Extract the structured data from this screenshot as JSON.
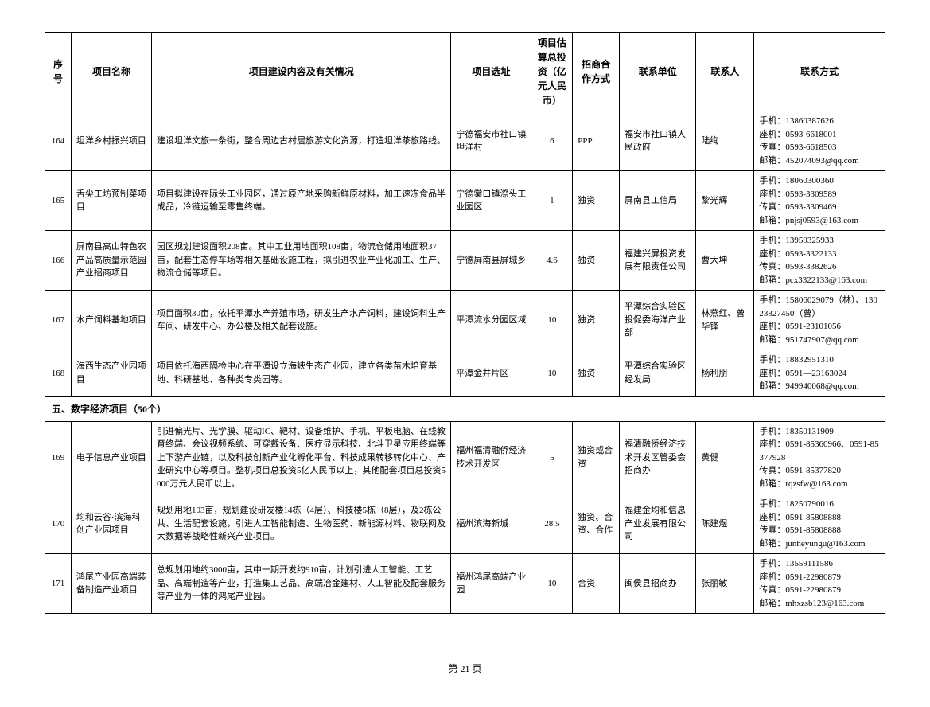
{
  "columns": [
    "序号",
    "项目名称",
    "项目建设内容及有关情况",
    "项目选址",
    "项目估算总投资（亿元人民币）",
    "招商合作方式",
    "联系单位",
    "联系人",
    "联系方式"
  ],
  "rows": [
    {
      "seq": "164",
      "name": "坦洋乡村振兴项目",
      "desc": "建设坦洋文旅一条街，整合周边古村居旅游文化资源，打造坦洋茶旅路线。",
      "loc": "宁德福安市社口镇坦洋村",
      "inv": "6",
      "mode": "PPP",
      "unit": "福安市社口镇人民政府",
      "person": "陆绚",
      "contact": "手机：13860387626\n座机：0593-6618001\n传真：0593-6618503\n邮箱：452074093@qq.com"
    },
    {
      "seq": "165",
      "name": "舌尖工坊预制菜项目",
      "desc": "项目拟建设在际头工业园区，通过原产地采购新鲜原材料，加工速冻食品半成品，冷链运输至零售终端。",
      "loc": "宁德棠口镇漈头工业园区",
      "inv": "1",
      "mode": "独资",
      "unit": "屏南县工信局",
      "person": "黎光辉",
      "contact": "手机：18060300360\n座机：0593-3309589\n传真：0593-3309469\n邮箱：pnjsj0593@163.com"
    },
    {
      "seq": "166",
      "name": "屏南县高山特色农产品高质量示范园产业招商项目",
      "desc": "园区规划建设面积208亩。其中工业用地面积108亩，物流仓储用地面积37亩，配套生态停车场等相关基础设施工程，拟引进农业产业化加工、生产、物流仓储等项目。",
      "loc": "宁德屏南县屏城乡",
      "inv": "4.6",
      "mode": "独资",
      "unit": "福建兴屏投资发展有限责任公司",
      "person": "曹大坤",
      "contact": "手机：13959325933\n座机：0593-3322133\n传真：0593-3382626\n邮箱：pcx3322133@163.com"
    },
    {
      "seq": "167",
      "name": "水产饲料基地项目",
      "desc": "项目面积30亩，依托平潭水产养殖市场，研发生产水产饲料，建设饲料生产车间、研发中心、办公楼及相关配套设施。",
      "loc": "平潭流水分园区域",
      "inv": "10",
      "mode": "独资",
      "unit": "平潭综合实验区投促委海洋产业部",
      "person": "林燕红、曾华锋",
      "contact": "手机：15806029079（林）、13023827450（曾）\n座机：0591-23101056\n邮箱：951747907@qq.com"
    },
    {
      "seq": "168",
      "name": "海西生态产业园项目",
      "desc": "项目依托海西隔检中心在平潭设立海峡生态产业园，建立各类苗木培育基地、科研基地、各种类专类园等。",
      "loc": "平潭金井片区",
      "inv": "10",
      "mode": "独资",
      "unit": "平潭综合实验区经发局",
      "person": "杨利朋",
      "contact": "手机：18832951310\n座机：0591—23163024\n邮箱：949940068@qq.com"
    }
  ],
  "section": "五、数字经济项目（50个）",
  "rows2": [
    {
      "seq": "169",
      "name": "电子信息产业项目",
      "desc": "引进偏光片、光学膜、驱动IC、靶材、设备维护、手机、平板电脑、在线教育终端、会议视频系统、可穿戴设备、医疗显示科技、北斗卫星应用终端等上下游产业链，以及科技创新产业化孵化平台、科技成果转移转化中心、产业研究中心等项目。整机项目总投资5亿人民币以上，其他配套项目总投资5000万元人民币以上。",
      "loc": "福州福清融侨经济技术开发区",
      "inv": "5",
      "mode": "独资或合资",
      "unit": "福清融侨经济技术开发区管委会招商办",
      "person": "黄健",
      "contact": "手机：18350131909\n座机：0591-85360966、0591-85377928\n传真：0591-85377820\n邮箱：rqzsfw@163.com"
    },
    {
      "seq": "170",
      "name": "均和云谷·滨海科创产业园项目",
      "desc": "规划用地103亩，规划建设研发楼14栋（4层）、科技楼5栋（8层），及2栋公共、生活配套设施，引进人工智能制造、生物医药、新能源材料、物联网及大数据等战略性新兴产业项目。",
      "loc": "福州滨海新城",
      "inv": "28.5",
      "mode": "独资、合资、合作",
      "unit": "福建金均和信息产业发展有限公司",
      "person": "陈建煜",
      "contact": "手机：18250790016\n座机：0591-85808888\n传真：0591-85808888\n邮箱：junheyungu@163.com"
    },
    {
      "seq": "171",
      "name": "鸿尾产业园高端装备制造产业项目",
      "desc": "总规划用地约3000亩，其中一期开发约910亩，计划引进人工智能、工艺品、高端制造等产业，打造集工艺品、高端冶金建材、人工智能及配套服务等产业为一体的鸿尾产业园。",
      "loc": "福州鸿尾高端产业园",
      "inv": "10",
      "mode": "合资",
      "unit": "闽侯县招商办",
      "person": "张丽敏",
      "contact": "手机：13559111586\n座机：0591-22980879\n传真：0591-22980879\n邮箱：mhxzsb123@163.com"
    }
  ],
  "pageNum": "第 21 页"
}
